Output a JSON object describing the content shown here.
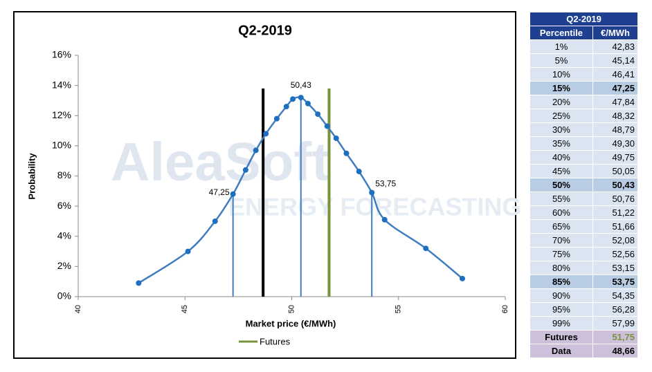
{
  "chart_data": {
    "type": "line",
    "title": "Q2-2019",
    "x_label": "Market price (€/MWh)",
    "y_label": "Probability",
    "x": [
      42.83,
      45.14,
      46.41,
      47.25,
      47.84,
      48.32,
      48.79,
      49.3,
      49.75,
      50.05,
      50.43,
      50.76,
      51.22,
      51.66,
      52.08,
      52.56,
      53.15,
      53.75,
      54.35,
      56.28,
      57.99
    ],
    "series": [
      {
        "color": "#3f7dc0",
        "values": [
          0.9,
          3.0,
          5.0,
          6.8,
          8.4,
          9.7,
          10.8,
          11.8,
          12.6,
          13.1,
          13.2,
          12.8,
          12.1,
          11.3,
          10.5,
          9.5,
          8.3,
          6.9,
          5.1,
          3.2,
          1.2
        ]
      }
    ],
    "xlim": [
      40,
      60
    ],
    "xticks": [
      40,
      45,
      50,
      55,
      60
    ],
    "ylim": [
      0,
      16
    ],
    "yticks": [
      {
        "value": 0,
        "label": "0%"
      },
      {
        "value": 2,
        "label": "2%"
      },
      {
        "value": 4,
        "label": "4%"
      },
      {
        "value": 6,
        "label": "6%"
      },
      {
        "value": 8,
        "label": "8%"
      },
      {
        "value": 10,
        "label": "10%"
      },
      {
        "value": 12,
        "label": "12%"
      },
      {
        "value": 14,
        "label": "14%"
      },
      {
        "value": 16,
        "label": "16%"
      }
    ],
    "annotations": [
      {
        "label": "47,25",
        "x": 47.25,
        "y": 6.8
      },
      {
        "label": "50,43",
        "x": 50.43,
        "y": 13.2
      },
      {
        "label": "53,75",
        "x": 53.75,
        "y": 6.9
      }
    ],
    "reference_lines": [
      {
        "value": 48.66,
        "top": 13.8,
        "color": "#000000"
      },
      {
        "name": "Futures",
        "value": 51.75,
        "top": 13.8,
        "color": "#77933c"
      }
    ],
    "grid": false,
    "watermark": [
      "AleaSoft",
      "ENERGY FORECASTING"
    ]
  },
  "table": {
    "title": "Q2-2019",
    "columns": [
      "Percentile",
      "€/MWh"
    ],
    "rows": [
      [
        "1%",
        "42,83"
      ],
      [
        "5%",
        "45,14"
      ],
      [
        "10%",
        "46,41"
      ],
      [
        "15%",
        "47,25"
      ],
      [
        "20%",
        "47,84"
      ],
      [
        "25%",
        "48,32"
      ],
      [
        "30%",
        "48,79"
      ],
      [
        "35%",
        "49,30"
      ],
      [
        "40%",
        "49,75"
      ],
      [
        "45%",
        "50,05"
      ],
      [
        "50%",
        "50,43"
      ],
      [
        "55%",
        "50,76"
      ],
      [
        "60%",
        "51,22"
      ],
      [
        "65%",
        "51,66"
      ],
      [
        "70%",
        "52,08"
      ],
      [
        "75%",
        "52,56"
      ],
      [
        "80%",
        "53,15"
      ],
      [
        "85%",
        "53,75"
      ],
      [
        "90%",
        "54,35"
      ],
      [
        "95%",
        "56,28"
      ],
      [
        "99%",
        "57,99"
      ]
    ],
    "bold_rows": [
      3,
      10,
      17
    ],
    "footer": [
      [
        "Futures",
        "51,75"
      ],
      [
        "Data",
        "48,66"
      ]
    ]
  }
}
